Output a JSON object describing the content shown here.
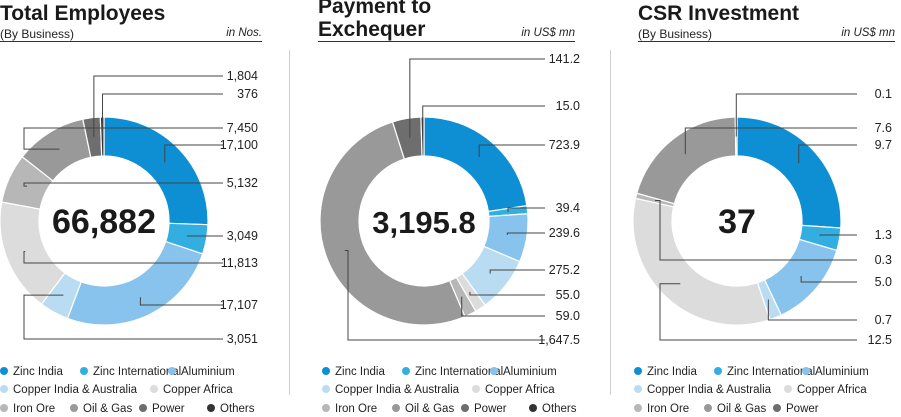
{
  "colors": {
    "zinc_india": "#0e8ed3",
    "zinc_international": "#33aee0",
    "aluminium": "#87c3ec",
    "copper_india": "#b9dcf3",
    "copper_africa": "#dcdcdc",
    "iron_ore": "#b7b7b7",
    "oil_gas": "#999999",
    "power": "#6e6e6e",
    "others": "#333333"
  },
  "chart_data": [
    {
      "type": "donut",
      "title": "Total Employees",
      "subtitle": "(By Business)",
      "unit": "in Nos.",
      "center_label": "66,882",
      "series": [
        {
          "name": "Zinc India",
          "value": 17100,
          "label": "17,100"
        },
        {
          "name": "Zinc International",
          "value": 3049,
          "label": "3,049"
        },
        {
          "name": "Aluminium",
          "value": 17107,
          "label": "17,107"
        },
        {
          "name": "Copper India & Australia",
          "value": 3051,
          "label": "3,051"
        },
        {
          "name": "Copper Africa",
          "value": 11813,
          "label": "11,813"
        },
        {
          "name": "Iron Ore",
          "value": 5132,
          "label": "5,132"
        },
        {
          "name": "Oil & Gas",
          "value": 7450,
          "label": "7,450"
        },
        {
          "name": "Power",
          "value": 1804,
          "label": "1,804"
        },
        {
          "name": "Others",
          "value": 376,
          "label": "376"
        }
      ],
      "legend": [
        "Zinc India",
        "Zinc International",
        "Aluminium",
        "Copper India & Australia",
        "Copper Africa",
        "Iron Ore",
        "Oil & Gas",
        "Power",
        "Others"
      ]
    },
    {
      "type": "donut",
      "title": "Payment to Exchequer",
      "title_lines": [
        "Payment to",
        "Exchequer"
      ],
      "subtitle": "",
      "unit": "in US$ mn",
      "center_label": "3,195.8",
      "series": [
        {
          "name": "Zinc India",
          "value": 723.9,
          "label": "723.9"
        },
        {
          "name": "Zinc International",
          "value": 39.4,
          "label": "39.4"
        },
        {
          "name": "Aluminium",
          "value": 239.6,
          "label": "239.6"
        },
        {
          "name": "Copper India & Australia",
          "value": 275.2,
          "label": "275.2"
        },
        {
          "name": "Copper Africa",
          "value": 55.0,
          "label": "55.0"
        },
        {
          "name": "Iron Ore",
          "value": 59.0,
          "label": "59.0"
        },
        {
          "name": "Oil & Gas",
          "value": 1647.5,
          "label": "1,647.5"
        },
        {
          "name": "Power",
          "value": 141.2,
          "label": "141.2"
        },
        {
          "name": "Others",
          "value": 15.0,
          "label": "15.0"
        }
      ],
      "legend": [
        "Zinc India",
        "Zinc International",
        "Aluminium",
        "Copper India & Australia",
        "Copper Africa",
        "Iron Ore",
        "Oil & Gas",
        "Power",
        "Others"
      ]
    },
    {
      "type": "donut",
      "title": "CSR Investment",
      "subtitle": "(By Business)",
      "unit": "in US$ mn",
      "center_label": "37",
      "series": [
        {
          "name": "Zinc India",
          "value": 9.7,
          "label": "9.7"
        },
        {
          "name": "Zinc International",
          "value": 1.3,
          "label": "1.3"
        },
        {
          "name": "Aluminium",
          "value": 5.0,
          "label": "5.0"
        },
        {
          "name": "Copper India & Australia",
          "value": 0.7,
          "label": "0.7"
        },
        {
          "name": "Copper Africa",
          "value": 12.5,
          "label": "12.5"
        },
        {
          "name": "Iron Ore",
          "value": 0.3,
          "label": "0.3"
        },
        {
          "name": "Oil & Gas",
          "value": 7.6,
          "label": "7.6"
        },
        {
          "name": "Power",
          "value": 0.1,
          "label": "0.1"
        }
      ],
      "legend": [
        "Zinc India",
        "Zinc International",
        "Aluminium",
        "Copper India & Australia",
        "Copper Africa",
        "Iron Ore",
        "Oil & Gas",
        "Power"
      ]
    }
  ]
}
